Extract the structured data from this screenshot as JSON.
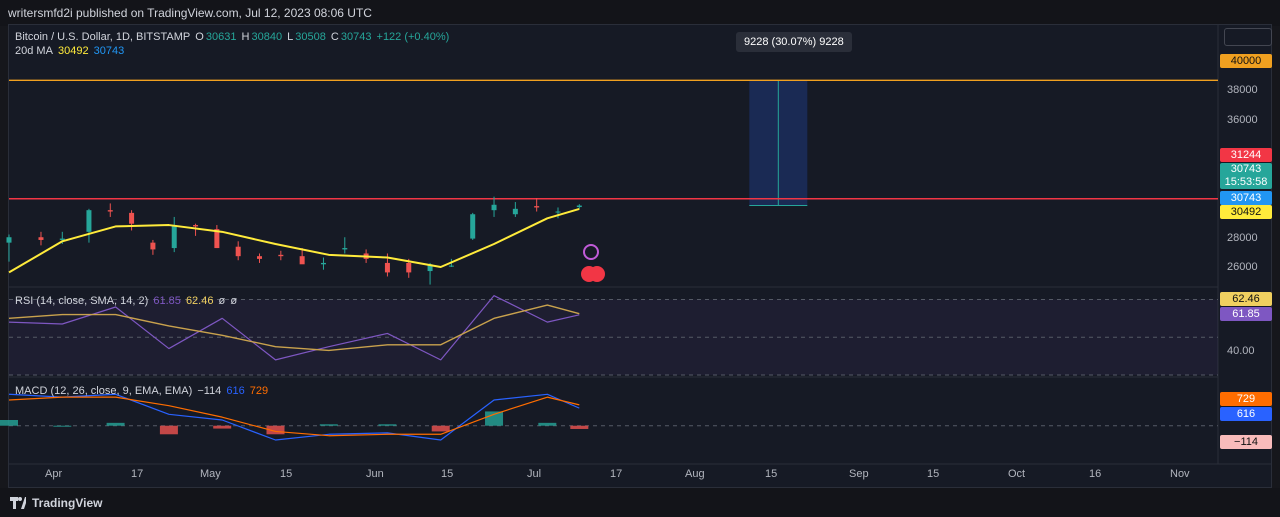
{
  "topbar": {
    "publisher": "writersmfd2i published on TradingView.com, Jul 12, 2023 08:06 UTC"
  },
  "legend": {
    "symbol": "Bitcoin / U.S. Dollar, 1D, BITSTAMP",
    "o_label": "O",
    "o": "30631",
    "h_label": "H",
    "h": "30840",
    "l_label": "L",
    "l": "30508",
    "c_label": "C",
    "c": "30743",
    "change": "+122 (+0.40%)",
    "ma_label": "20d MA",
    "ma_value1": "30492",
    "ma_value2": "30743"
  },
  "rsi_legend": {
    "label": "RSI (14, close, SMA, 14, 2)",
    "v1": "61.85",
    "v2": "62.46",
    "v3": "ø",
    "v4": "ø"
  },
  "macd_legend": {
    "label": "MACD (12, 26, close, 9, EMA, EMA)",
    "v1": "−114",
    "v2": "616",
    "v3": "729"
  },
  "measure": {
    "text": "9228 (30.07%) 9228"
  },
  "price_scale": [
    "38000",
    "36000",
    "28000",
    "26000"
  ],
  "price_tags": {
    "resistance_high": "40000",
    "resistance_low": "31244",
    "last_price": "30743",
    "countdown": "15:53:58",
    "last_close": "30743",
    "ma": "30492",
    "rsi_ma": "62.46",
    "rsi": "61.85",
    "rsi_level": "40.00",
    "macd_signal": "729",
    "macd": "616",
    "macd_hist": "−114"
  },
  "months": [
    "Apr",
    "17",
    "May",
    "15",
    "Jun",
    "15",
    "Jul",
    "17",
    "Aug",
    "15",
    "Sep",
    "15",
    "Oct",
    "16",
    "Nov"
  ],
  "footer": {
    "brand": "TradingView"
  },
  "colors": {
    "up": "#26a69a",
    "down": "#ef5350",
    "ma": "#ffeb3b",
    "resistance_orange": "#f0a020",
    "resistance_red": "#f23645",
    "rsi": "#7e57c2",
    "rsi_ma": "#c9a24d",
    "macd": "#2962ff",
    "signal": "#ff6d00"
  },
  "chart_data": [
    {
      "type": "candlestick",
      "title": "Bitcoin / U.S. Dollar, 1D, BITSTAMP",
      "ylim": [
        24500,
        41500
      ],
      "y_ticks": [
        26000,
        28000,
        30743,
        36000,
        38000,
        40000
      ],
      "horizontal_lines": [
        40000,
        31244
      ],
      "series": [
        {
          "name": "BTCUSD",
          "x": [
            "Mar 26",
            "Apr 1",
            "Apr 5",
            "Apr 10",
            "Apr 14",
            "Apr 18",
            "Apr 22",
            "Apr 26",
            "Apr 30",
            "May 4",
            "May 8",
            "May 12",
            "May 16",
            "May 20",
            "May 24",
            "May 28",
            "Jun 1",
            "Jun 5",
            "Jun 9",
            "Jun 13",
            "Jun 17",
            "Jun 21",
            "Jun 25",
            "Jun 29",
            "Jul 3",
            "Jul 7",
            "Jul 11"
          ],
          "open": [
            28000,
            28400,
            28200,
            28800,
            30400,
            30200,
            28000,
            27600,
            29300,
            29000,
            27700,
            27000,
            27100,
            27000,
            26400,
            27500,
            27200,
            26500,
            26500,
            25900,
            26300,
            28300,
            30400,
            30100,
            30700,
            30300,
            30631
          ],
          "high": [
            28600,
            28800,
            28800,
            30500,
            30900,
            30400,
            28200,
            29900,
            29400,
            29300,
            28100,
            27200,
            27400,
            27600,
            26900,
            28400,
            27500,
            27200,
            26800,
            26500,
            26800,
            30200,
            31400,
            31000,
            31300,
            30600,
            30840
          ],
          "low": [
            26600,
            27800,
            27900,
            28000,
            29900,
            28900,
            27100,
            27300,
            28500,
            27600,
            26700,
            26500,
            26700,
            26500,
            26000,
            27200,
            26500,
            25500,
            25400,
            24900,
            26200,
            28200,
            29900,
            29900,
            30300,
            29800,
            30508
          ],
          "close": [
            28400,
            28200,
            28300,
            30400,
            30300,
            29400,
            27500,
            29300,
            29200,
            27600,
            27000,
            26800,
            27000,
            26400,
            26500,
            27600,
            26800,
            25800,
            25800,
            26400,
            26300,
            30100,
            30800,
            30500,
            30600,
            30300,
            30743
          ]
        },
        {
          "name": "20d MA",
          "x": [
            "Mar 26",
            "Apr 5",
            "Apr 15",
            "Apr 25",
            "May 5",
            "May 15",
            "May 25",
            "Jun 5",
            "Jun 15",
            "Jun 25",
            "Jul 5",
            "Jul 11"
          ],
          "values": [
            25800,
            28100,
            29200,
            29300,
            28800,
            27900,
            27100,
            26900,
            26200,
            27900,
            29800,
            30492
          ]
        }
      ]
    },
    {
      "type": "line",
      "title": "RSI (14, close, SMA, 14, 2)",
      "ylim": [
        30,
        75
      ],
      "y_ticks": [
        40,
        61.85,
        62.46
      ],
      "series": [
        {
          "name": "RSI",
          "x": [
            "Mar 26",
            "Apr 5",
            "Apr 15",
            "Apr 25",
            "May 5",
            "May 15",
            "May 25",
            "Jun 5",
            "Jun 15",
            "Jun 25",
            "Jul 5",
            "Jul 11"
          ],
          "values": [
            58,
            57,
            66,
            44,
            60,
            38,
            45,
            52,
            38,
            72,
            58,
            61.85
          ]
        },
        {
          "name": "RSI MA",
          "x": [
            "Mar 26",
            "Apr 5",
            "Apr 15",
            "Apr 25",
            "May 5",
            "May 15",
            "May 25",
            "Jun 5",
            "Jun 15",
            "Jun 25",
            "Jul 5",
            "Jul 11"
          ],
          "values": [
            60,
            62,
            62,
            56,
            51,
            45,
            43,
            46,
            46,
            60,
            67,
            62.46
          ]
        }
      ]
    },
    {
      "type": "line",
      "title": "MACD (12, 26, close, 9, EMA, EMA)",
      "ylim": [
        -1200,
        1600
      ],
      "y_ticks": [
        729,
        616,
        -114
      ],
      "series": [
        {
          "name": "MACD",
          "x": [
            "Mar 26",
            "Apr 5",
            "Apr 15",
            "Apr 25",
            "May 5",
            "May 15",
            "May 25",
            "Jun 5",
            "Jun 15",
            "Jun 25",
            "Jul 5",
            "Jul 11"
          ],
          "values": [
            1100,
            1000,
            1100,
            400,
            200,
            -500,
            -300,
            -250,
            -500,
            900,
            1100,
            616
          ]
        },
        {
          "name": "Signal",
          "x": [
            "Mar 26",
            "Apr 5",
            "Apr 15",
            "Apr 25",
            "May 5",
            "May 15",
            "May 25",
            "Jun 5",
            "Jun 15",
            "Jun 25",
            "Jul 5",
            "Jul 11"
          ],
          "values": [
            900,
            1000,
            1000,
            700,
            300,
            -200,
            -350,
            -300,
            -300,
            400,
            1000,
            729
          ]
        },
        {
          "name": "Histogram",
          "x": [
            "Mar 26",
            "Apr 5",
            "Apr 15",
            "Apr 25",
            "May 5",
            "May 15",
            "May 25",
            "Jun 5",
            "Jun 15",
            "Jun 25",
            "Jul 5",
            "Jul 11"
          ],
          "values": [
            200,
            0,
            100,
            -300,
            -100,
            -300,
            50,
            50,
            -200,
            500,
            100,
            -114
          ]
        }
      ]
    }
  ]
}
